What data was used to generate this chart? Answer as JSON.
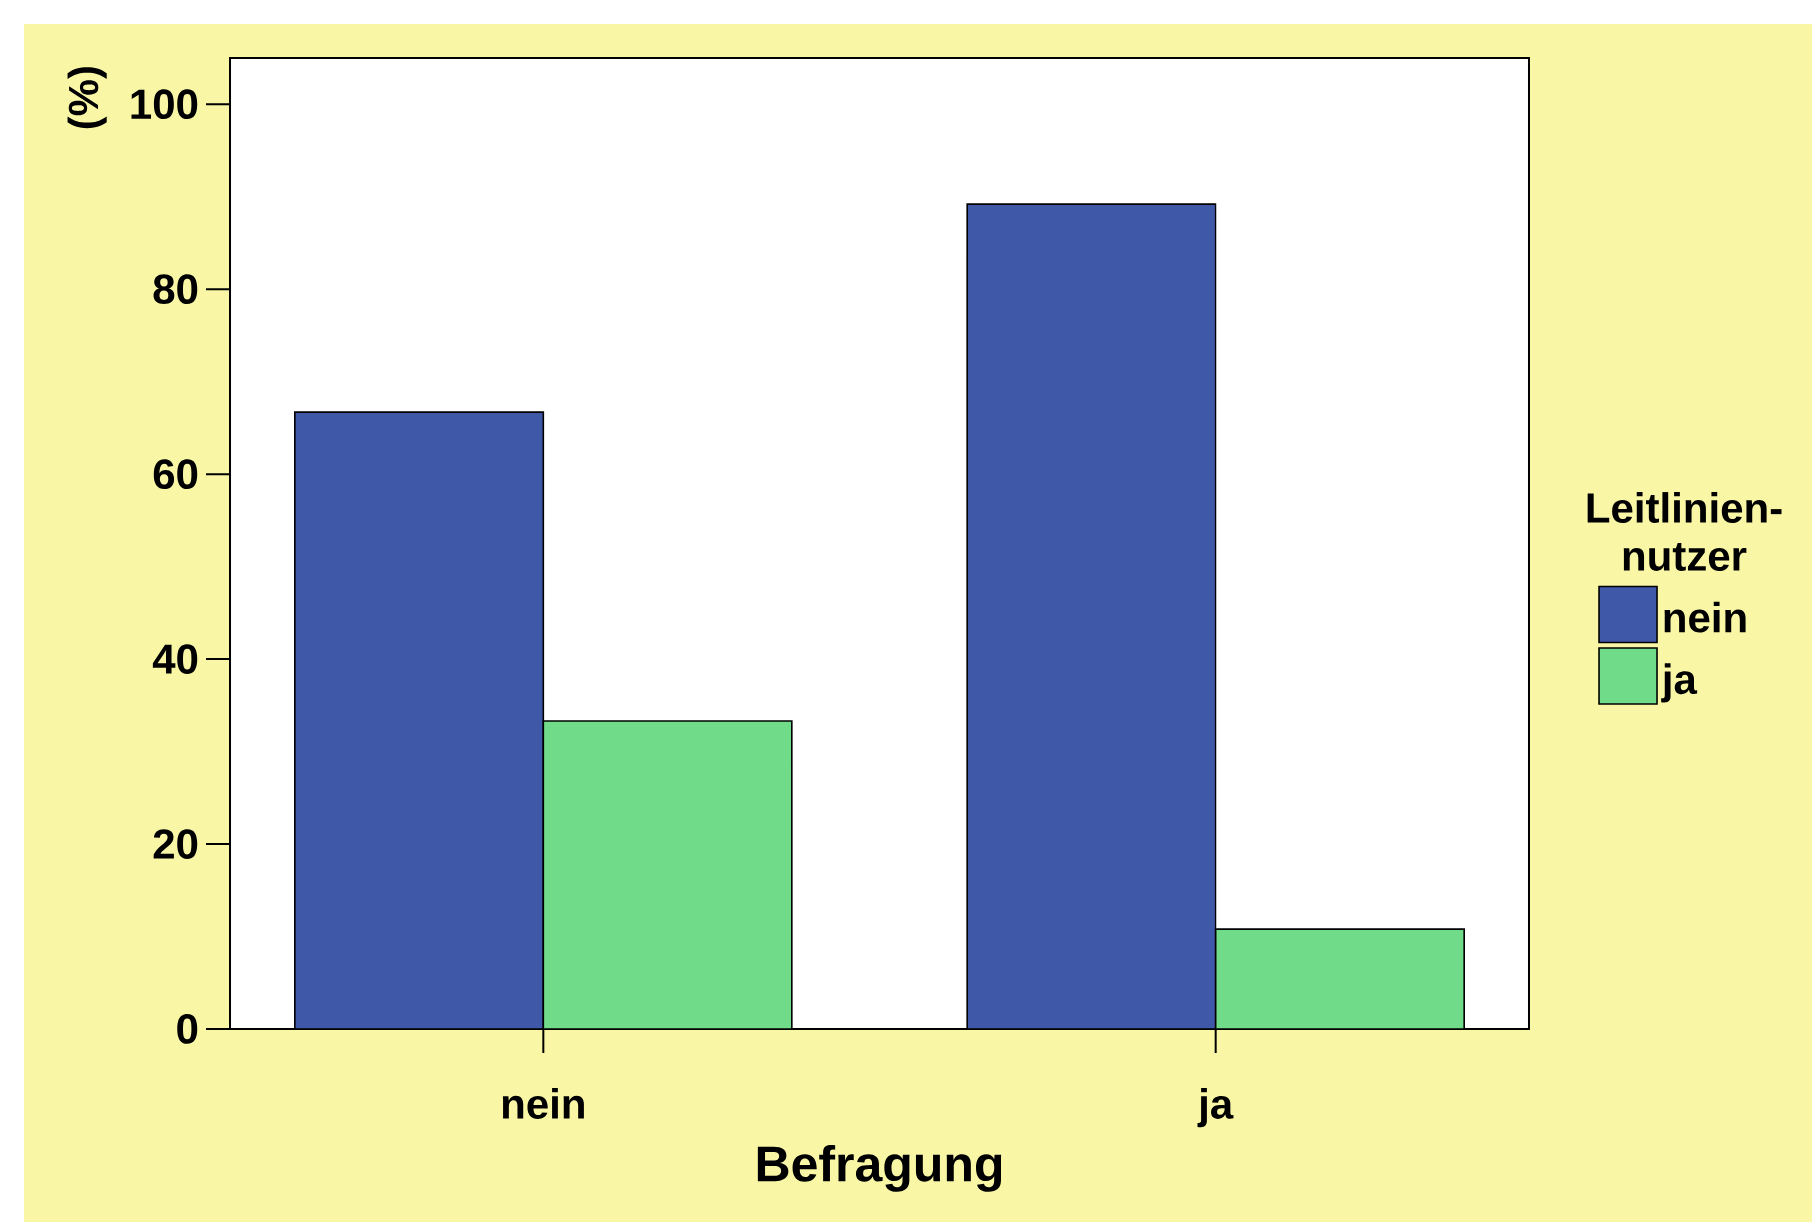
{
  "chart_data": {
    "type": "bar",
    "xlabel": "Befragung",
    "ylabel": "(%)",
    "legend_title": "Leitlinien-nutzer",
    "categories": [
      "nein",
      "ja"
    ],
    "series": [
      {
        "name": "nein",
        "color": "#3f58a8",
        "values": [
          66.7,
          89.2
        ]
      },
      {
        "name": "ja",
        "color": "#70db88",
        "values": [
          33.3,
          10.8
        ]
      }
    ],
    "ylim": [
      0,
      105
    ],
    "yticks": [
      0,
      20,
      40,
      60,
      80,
      100
    ],
    "grid": false,
    "legend": "right"
  }
}
